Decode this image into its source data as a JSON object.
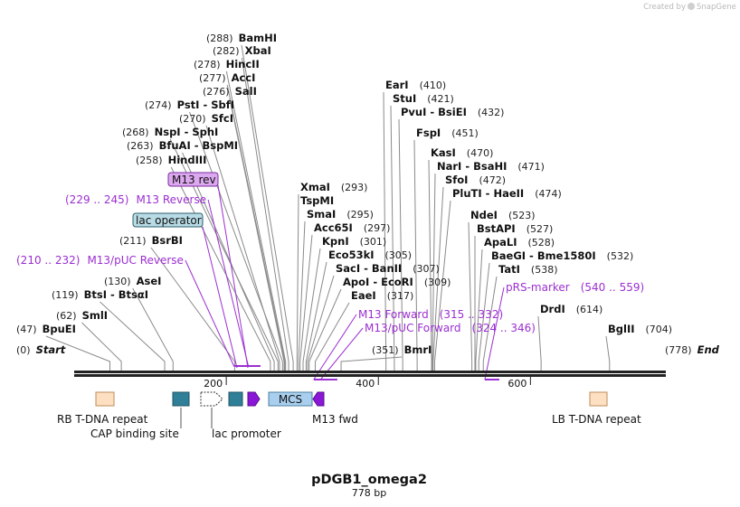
{
  "credit": {
    "text": "Created by",
    "brand": "SnapGene"
  },
  "title": "pDGB1_omega2",
  "subtitle": "778 bp",
  "enzymes": [
    {
      "pos": "(0)",
      "name": "Start",
      "italic": true
    },
    {
      "pos": "(47)",
      "name": "BpuEI"
    },
    {
      "pos": "(62)",
      "name": "SmlI"
    },
    {
      "pos": "(119)",
      "name": "BtsI  -  BtsαI"
    },
    {
      "pos": "(130)",
      "name": "AseI"
    },
    {
      "pos": "(211)",
      "name": "BsrBI"
    },
    {
      "pos": "(258)",
      "name": "HindIII"
    },
    {
      "pos": "(263)",
      "name": "BfuAI  -  BspMI"
    },
    {
      "pos": "(268)",
      "name": "NspI  -  SphI"
    },
    {
      "pos": "(270)",
      "name": "SfcI"
    },
    {
      "pos": "(274)",
      "name": "PstI  -  SbfI"
    },
    {
      "pos": "(276)",
      "name": "SalI"
    },
    {
      "pos": "(277)",
      "name": "AccI"
    },
    {
      "pos": "(278)",
      "name": "HincII"
    },
    {
      "pos": "(282)",
      "name": "XbaI"
    },
    {
      "pos": "(288)",
      "name": "BamHI"
    },
    {
      "pos": "(293)",
      "name": "XmaI"
    },
    {
      "pos": "",
      "name": "TspMI"
    },
    {
      "pos": "(295)",
      "name": "SmaI"
    },
    {
      "pos": "(297)",
      "name": "Acc65I"
    },
    {
      "pos": "(301)",
      "name": "KpnI"
    },
    {
      "pos": "(305)",
      "name": "Eco53kI"
    },
    {
      "pos": "(307)",
      "name": "SacI  -  BanII"
    },
    {
      "pos": "(309)",
      "name": "ApoI  -  EcoRI"
    },
    {
      "pos": "(317)",
      "name": "EaeI"
    },
    {
      "pos": "(351)",
      "name": "BmrI"
    },
    {
      "pos": "(410)",
      "name": "EarI"
    },
    {
      "pos": "(421)",
      "name": "StuI"
    },
    {
      "pos": "(432)",
      "name": "PvuI  -  BsiEI"
    },
    {
      "pos": "(451)",
      "name": "FspI"
    },
    {
      "pos": "(470)",
      "name": "KasI"
    },
    {
      "pos": "(471)",
      "name": "NarI  -  BsaHI"
    },
    {
      "pos": "(472)",
      "name": "SfoI"
    },
    {
      "pos": "(474)",
      "name": "PluTI  -  HaeII"
    },
    {
      "pos": "(523)",
      "name": "NdeI"
    },
    {
      "pos": "(527)",
      "name": "BstAPI"
    },
    {
      "pos": "(528)",
      "name": "ApaLI"
    },
    {
      "pos": "(532)",
      "name": "BaeGI  -  Bme1580I"
    },
    {
      "pos": "(538)",
      "name": "TatI"
    },
    {
      "pos": "(614)",
      "name": "DrdI"
    },
    {
      "pos": "(704)",
      "name": "BglII"
    },
    {
      "pos": "(778)",
      "name": "End",
      "italic": true
    }
  ],
  "primers": [
    {
      "range": "(210 .. 232)",
      "name": "M13/pUC Reverse"
    },
    {
      "range": "(229 .. 245)",
      "name": "M13 Reverse"
    },
    {
      "range": "(315 .. 332)",
      "name": "M13 Forward"
    },
    {
      "range": "(324 .. 346)",
      "name": "M13/pUC Forward"
    },
    {
      "range": "(540 .. 559)",
      "name": "pRS-marker"
    }
  ],
  "boxed_labels": [
    {
      "name": "M13 rev"
    },
    {
      "name": "lac operator"
    }
  ],
  "features": [
    {
      "name": "RB T-DNA repeat"
    },
    {
      "name": "CAP binding site"
    },
    {
      "name": "lac promoter"
    },
    {
      "name": "MCS"
    },
    {
      "name": "M13 fwd"
    },
    {
      "name": "LB T-DNA repeat"
    }
  ],
  "ruler": [
    "200",
    "400",
    "600"
  ],
  "colors": {
    "primer": "#9b2fd1",
    "tdna": "#fde0c2",
    "cap": "#2f7f98",
    "lac_op_fill": "#b8dce6",
    "m13rev_fill": "#dca8ef",
    "mcs": "#a8cfee",
    "arrow": "#8a17d6"
  }
}
